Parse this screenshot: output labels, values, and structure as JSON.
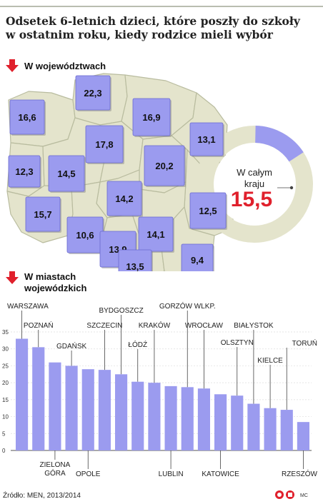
{
  "title": {
    "line1": "Odsetek 6-letnich dzieci, które poszły do szkoły",
    "line2": "w ostatnim roku, kiedy rodzice mieli wybór"
  },
  "regions_section": {
    "label": "W województwach"
  },
  "regions": [
    {
      "value": "22,3"
    },
    {
      "value": "16,6"
    },
    {
      "value": "16,9"
    },
    {
      "value": "17,8"
    },
    {
      "value": "13,1"
    },
    {
      "value": "12,3"
    },
    {
      "value": "14,5"
    },
    {
      "value": "20,2"
    },
    {
      "value": "14,2"
    },
    {
      "value": "15,7"
    },
    {
      "value": "12,5"
    },
    {
      "value": "10,6"
    },
    {
      "value": "14,1"
    },
    {
      "value": "13,9"
    },
    {
      "value": "13,5"
    },
    {
      "value": "9,4"
    }
  ],
  "national": {
    "label_line1": "W całym",
    "label_line2": "kraju",
    "value_text": "15,5",
    "share": 0.155
  },
  "cities_section": {
    "line1": "W miastach",
    "line2": "wojewódzkich"
  },
  "chart_data": {
    "type": "bar",
    "categories": [
      "WARSZAWA",
      "POZNAŃ",
      "ZIELONA GÓRA",
      "GDAŃSK",
      "OPOLE",
      "SZCZECIN",
      "BYDGOSZCZ",
      "ŁÓDŹ",
      "KRAKÓW",
      "LUBLIN",
      "GORZÓW WLKP.",
      "WROCŁAW",
      "KATOWICE",
      "OLSZTYN",
      "BIAŁYSTOK",
      "KIELCE",
      "TORUŃ",
      "RZESZÓW"
    ],
    "values": [
      33,
      30.5,
      26,
      25,
      24,
      23.8,
      22.5,
      20.3,
      20,
      19,
      18.7,
      18.3,
      16.6,
      16.2,
      13.8,
      12.5,
      12,
      8.4
    ],
    "yticks": [
      "0",
      "5",
      "10",
      "15",
      "20",
      "25",
      "30",
      "35"
    ],
    "ylim": [
      0,
      35
    ],
    "grid": true,
    "labels_top": [
      {
        "idx": 0,
        "text": "WARSZAWA"
      },
      {
        "idx": 1,
        "text": "POZNAŃ"
      },
      {
        "idx": 3,
        "text": "GDAŃSK"
      },
      {
        "idx": 5,
        "text": "SZCZECIN"
      },
      {
        "idx": 6,
        "text": "BYDGOSZCZ"
      },
      {
        "idx": 7,
        "text": "ŁÓDŹ"
      },
      {
        "idx": 8,
        "text": "KRAKÓW"
      },
      {
        "idx": 10,
        "text": "GORZÓW WLKP."
      },
      {
        "idx": 11,
        "text": "WROCŁAW"
      },
      {
        "idx": 13,
        "text": "OLSZTYN"
      },
      {
        "idx": 14,
        "text": "BIAŁYSTOK"
      },
      {
        "idx": 15,
        "text": "KIELCE"
      },
      {
        "idx": 16,
        "text": "TORUŃ"
      }
    ],
    "labels_bottom": [
      {
        "idx": 2,
        "lines": [
          "ZIELONA",
          "GÓRA"
        ]
      },
      {
        "idx": 4,
        "lines": [
          "OPOLE"
        ]
      },
      {
        "idx": 9,
        "lines": [
          "LUBLIN"
        ]
      },
      {
        "idx": 12,
        "lines": [
          "KATOWICE"
        ]
      },
      {
        "idx": 17,
        "lines": [
          "RZESZÓW"
        ]
      }
    ]
  },
  "source": "Źródło: MEN, 2013/2014",
  "author": "MC",
  "colors": {
    "bar": "#9b9bef",
    "bar_edge": "#6a6ad0",
    "map_fill": "#e4e4cc",
    "map_stroke": "#b9bc9f",
    "donut_rest": "#e4e4cc",
    "accent": "#e0202c"
  }
}
